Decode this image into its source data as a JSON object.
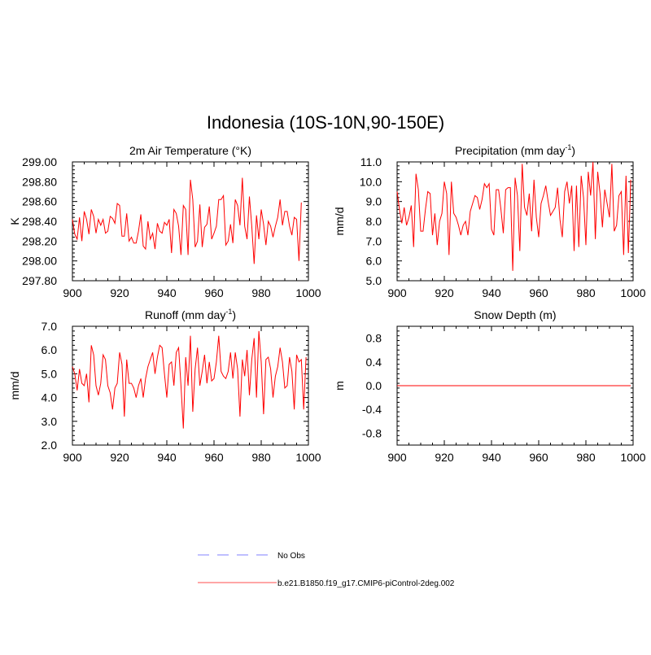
{
  "title": "Indonesia (10S-10N,90-150E)",
  "colors": {
    "model": "#ff0000",
    "obs": "#9999ff",
    "frame": "#000000"
  },
  "legend": {
    "obs_label": "No Obs",
    "model_label": "b.e21.B1850.f19_g17.CMIP6-piControl-2deg.002"
  },
  "chart_data": [
    {
      "type": "line",
      "title": "2m Air Temperature (°K)",
      "ylabel": "K",
      "xlim": [
        900,
        1000
      ],
      "ylim": [
        297.8,
        299.0
      ],
      "xticks": [
        900,
        920,
        940,
        960,
        980,
        1000
      ],
      "xtick_labels": [
        "900",
        "920",
        "940",
        "960",
        "980",
        "1000"
      ],
      "yticks": [
        297.8,
        298.0,
        298.2,
        298.4,
        298.6,
        298.8,
        299.0
      ],
      "ytick_labels": [
        "297.80",
        "298.00",
        "298.20",
        "298.40",
        "298.60",
        "298.80",
        "299.00"
      ],
      "x_start": 900,
      "series": [
        {
          "name": "b.e21.B1850.f19_g17.CMIP6-piControl-2deg.002",
          "values": [
            298.42,
            298.27,
            298.22,
            298.44,
            298.2,
            298.5,
            298.42,
            298.27,
            298.52,
            298.45,
            298.28,
            298.42,
            298.36,
            298.42,
            298.28,
            298.3,
            298.45,
            298.43,
            298.38,
            298.58,
            298.56,
            298.25,
            298.25,
            298.48,
            298.2,
            298.24,
            298.18,
            298.18,
            298.3,
            298.47,
            298.15,
            298.12,
            298.4,
            298.22,
            298.28,
            298.12,
            298.38,
            298.3,
            298.28,
            298.39,
            298.36,
            298.42,
            298.08,
            298.52,
            298.48,
            298.35,
            298.06,
            298.56,
            298.52,
            298.06,
            298.82,
            298.62,
            298.14,
            298.2,
            298.57,
            298.14,
            298.34,
            298.37,
            298.55,
            298.22,
            298.28,
            298.35,
            298.62,
            298.62,
            298.66,
            298.16,
            298.2,
            298.37,
            298.18,
            298.62,
            298.56,
            298.36,
            298.84,
            298.35,
            298.22,
            298.65,
            298.35,
            297.97,
            298.46,
            298.22,
            298.52,
            298.37,
            298.16,
            298.4,
            298.35,
            298.24,
            298.35,
            298.44,
            298.62,
            298.36,
            298.5,
            298.5,
            298.35,
            298.26,
            298.44,
            298.42,
            298.0,
            298.59
          ]
        }
      ]
    },
    {
      "type": "line",
      "title": "Precipitation (mm day",
      "title_sup": "-1",
      "title_end": ")",
      "ylabel": "mm/d",
      "xlim": [
        900,
        1000
      ],
      "ylim": [
        5.0,
        11.0
      ],
      "xticks": [
        900,
        920,
        940,
        960,
        980,
        1000
      ],
      "xtick_labels": [
        "900",
        "920",
        "940",
        "960",
        "980",
        "1000"
      ],
      "yticks": [
        5.0,
        6.0,
        7.0,
        8.0,
        9.0,
        10.0,
        11.0
      ],
      "ytick_labels": [
        "5.0",
        "6.0",
        "7.0",
        "8.0",
        "9.0",
        "10.0",
        "11.0"
      ],
      "x_start": 900,
      "series": [
        {
          "name": "b.e21.B1850.f19_g17.CMIP6-piControl-2deg.002",
          "values": [
            9.5,
            8.6,
            7.9,
            8.7,
            7.8,
            8.2,
            8.8,
            6.7,
            10.4,
            9.6,
            7.5,
            7.5,
            8.6,
            9.5,
            9.4,
            7.3,
            8.4,
            6.8,
            8.0,
            8.4,
            10.0,
            9.4,
            6.3,
            10.0,
            8.4,
            8.2,
            7.8,
            7.3,
            7.8,
            8.0,
            7.3,
            8.5,
            8.9,
            9.3,
            9.2,
            8.6,
            9.1,
            9.9,
            9.7,
            9.9,
            7.6,
            7.3,
            9.6,
            9.6,
            8.6,
            7.4,
            9.6,
            9.7,
            9.7,
            5.5,
            10.2,
            9.3,
            6.5,
            10.9,
            8.7,
            8.3,
            9.4,
            7.5,
            10.1,
            8.2,
            7.2,
            8.9,
            9.3,
            9.8,
            9.0,
            8.3,
            8.5,
            8.7,
            9.7,
            8.1,
            7.2,
            9.5,
            10.0,
            8.9,
            9.8,
            6.5,
            9.8,
            6.7,
            10.3,
            9.2,
            6.8,
            10.5,
            9.3,
            11.0,
            7.1,
            10.5,
            9.4,
            7.7,
            9.6,
            8.9,
            8.2,
            10.9,
            7.5,
            7.8,
            9.3,
            9.5,
            6.3,
            10.3,
            6.4,
            10.1
          ]
        }
      ]
    },
    {
      "type": "line",
      "title": "Runoff (mm day",
      "title_sup": "-1",
      "title_end": ")",
      "ylabel": "mm/d",
      "xlim": [
        900,
        1000
      ],
      "ylim": [
        2.0,
        7.0
      ],
      "xticks": [
        900,
        920,
        940,
        960,
        980,
        1000
      ],
      "xtick_labels": [
        "900",
        "920",
        "940",
        "960",
        "980",
        "1000"
      ],
      "yticks": [
        2.0,
        3.0,
        4.0,
        5.0,
        6.0,
        7.0
      ],
      "ytick_labels": [
        "2.0",
        "3.0",
        "4.0",
        "5.0",
        "6.0",
        "7.0"
      ],
      "x_start": 900,
      "series": [
        {
          "name": "b.e21.B1850.f19_g17.CMIP6-piControl-2deg.002",
          "values": [
            5.3,
            5.0,
            4.3,
            5.2,
            4.6,
            4.5,
            5.0,
            3.8,
            6.2,
            5.8,
            4.5,
            4.1,
            4.6,
            5.8,
            5.6,
            4.5,
            4.2,
            3.5,
            4.4,
            4.6,
            5.9,
            5.4,
            3.2,
            5.6,
            4.6,
            4.6,
            4.4,
            4.0,
            4.5,
            4.8,
            4.0,
            4.8,
            5.3,
            5.6,
            5.9,
            5.0,
            5.7,
            6.2,
            6.1,
            5.0,
            4.0,
            5.4,
            5.5,
            4.5,
            5.9,
            6.1,
            4.5,
            2.7,
            5.7,
            4.5,
            6.6,
            3.4,
            5.2,
            6.1,
            4.5,
            5.1,
            5.8,
            4.6,
            5.5,
            4.7,
            4.8,
            5.5,
            6.6,
            5.1,
            4.9,
            4.8,
            5.1,
            5.9,
            4.8,
            5.9,
            5.2,
            3.2,
            5.6,
            4.9,
            6.0,
            4.1,
            5.6,
            6.5,
            4.0,
            6.8,
            5.5,
            3.3,
            5.6,
            5.7,
            5.2,
            4.0,
            4.9,
            5.3,
            6.1,
            5.5,
            4.4,
            4.5,
            5.7,
            5.1,
            3.5,
            5.8,
            5.5,
            5.6,
            3.5,
            5.7
          ]
        }
      ]
    },
    {
      "type": "line",
      "title": "Snow Depth (m)",
      "ylabel": "m",
      "xlim": [
        900,
        1000
      ],
      "ylim": [
        -1.0,
        1.0
      ],
      "xticks": [
        900,
        920,
        940,
        960,
        980,
        1000
      ],
      "xtick_labels": [
        "900",
        "920",
        "940",
        "960",
        "980",
        "1000"
      ],
      "yticks": [
        -0.8,
        -0.4,
        0.0,
        0.4,
        0.8
      ],
      "ytick_labels": [
        "-0.8",
        "-0.4",
        "0.0",
        "0.4",
        "0.8"
      ],
      "x_start": 900,
      "series": [
        {
          "name": "b.e21.B1850.f19_g17.CMIP6-piControl-2deg.002",
          "values": [
            0,
            0,
            0,
            0,
            0,
            0,
            0,
            0,
            0,
            0,
            0,
            0,
            0,
            0,
            0,
            0,
            0,
            0,
            0,
            0,
            0,
            0,
            0,
            0,
            0,
            0,
            0,
            0,
            0,
            0,
            0,
            0,
            0,
            0,
            0,
            0,
            0,
            0,
            0,
            0,
            0,
            0,
            0,
            0,
            0,
            0,
            0,
            0,
            0,
            0,
            0,
            0,
            0,
            0,
            0,
            0,
            0,
            0,
            0,
            0,
            0,
            0,
            0,
            0,
            0,
            0,
            0,
            0,
            0,
            0,
            0,
            0,
            0,
            0,
            0,
            0,
            0,
            0,
            0,
            0,
            0,
            0,
            0,
            0,
            0,
            0,
            0,
            0,
            0,
            0,
            0,
            0,
            0,
            0,
            0,
            0,
            0,
            0,
            0,
            0
          ]
        }
      ]
    }
  ]
}
